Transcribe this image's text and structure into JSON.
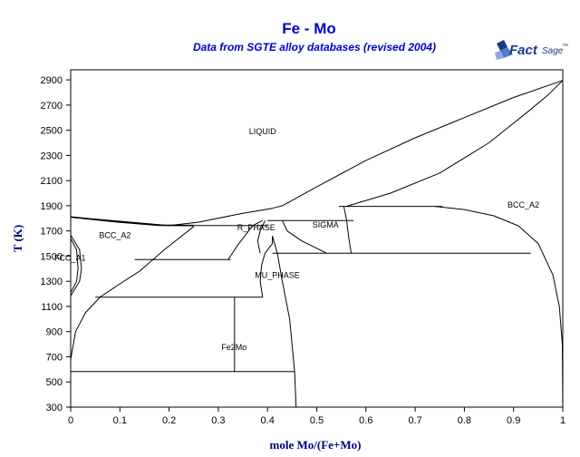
{
  "colors": {
    "title": "#0000cc",
    "axis_label": "#000080",
    "logo": "#1a3a8a",
    "line": "#000000"
  },
  "logo": {
    "icon": "factsage-logo-icon",
    "brand_fact": "Fact",
    "brand_sage": "Sage",
    "trademark": "™"
  },
  "chart_data": {
    "type": "phase-diagram",
    "title": "Fe - Mo",
    "subtitle": "Data from SGTE alloy databases (revised 2004)",
    "xlabel": "mole Mo/(Fe+Mo)",
    "ylabel": "T (K)",
    "xlim": [
      0,
      1
    ],
    "ylim": [
      300,
      2980
    ],
    "xticks": [
      0,
      0.1,
      0.2,
      0.3,
      0.4,
      0.5,
      0.6,
      0.7,
      0.8,
      0.9,
      1
    ],
    "yticks": [
      300,
      500,
      700,
      900,
      1100,
      1300,
      1500,
      1700,
      1900,
      2100,
      2300,
      2500,
      2700,
      2900
    ],
    "grid": false,
    "phase_labels": [
      {
        "text": "LIQUID",
        "x": 0.39,
        "y": 2470
      },
      {
        "text": "BCC_A2",
        "x": 0.92,
        "y": 1885
      },
      {
        "text": "BCC_A2",
        "x": 0.09,
        "y": 1645
      },
      {
        "text": "R_PHASE",
        "x": 0.377,
        "y": 1705
      },
      {
        "text": "SIGMA",
        "x": 0.518,
        "y": 1725
      },
      {
        "text": "FCC_A1",
        "x": 0.0,
        "y": 1465
      },
      {
        "text": "MU_PHASE",
        "x": 0.42,
        "y": 1325
      },
      {
        "text": "Fe2Mo",
        "x": 0.332,
        "y": 755
      }
    ],
    "boundaries": [
      {
        "name": "liquidus",
        "points": [
          [
            0.0,
            1811
          ],
          [
            0.2,
            1743
          ],
          [
            0.26,
            1770
          ],
          [
            0.35,
            1840
          ],
          [
            0.41,
            1880
          ],
          [
            0.43,
            1900
          ],
          [
            0.5,
            2050
          ],
          [
            0.6,
            2260
          ],
          [
            0.7,
            2440
          ],
          [
            0.8,
            2600
          ],
          [
            0.9,
            2760
          ],
          [
            1.0,
            2896
          ]
        ]
      },
      {
        "name": "solidus-fe",
        "points": [
          [
            0.0,
            1811
          ],
          [
            0.1,
            1770
          ],
          [
            0.18,
            1745
          ],
          [
            0.25,
            1743
          ]
        ]
      },
      {
        "name": "liquid-bcc-mo",
        "points": [
          [
            0.56,
            1895
          ],
          [
            0.65,
            2000
          ],
          [
            0.75,
            2160
          ],
          [
            0.85,
            2400
          ],
          [
            0.93,
            2650
          ],
          [
            0.97,
            2780
          ],
          [
            1.0,
            2896
          ]
        ]
      },
      {
        "name": "eutectic-fe-r",
        "points": [
          [
            0.25,
            1743
          ],
          [
            0.4,
            1743
          ]
        ]
      },
      {
        "name": "eutectic-sigma",
        "points": [
          [
            0.4,
            1783
          ],
          [
            0.575,
            1783
          ]
        ]
      },
      {
        "name": "peritectic-sigma",
        "points": [
          [
            0.545,
            1895
          ],
          [
            0.755,
            1895
          ]
        ]
      },
      {
        "name": "bcc-mo-solvus",
        "points": [
          [
            0.74,
            1895
          ],
          [
            0.8,
            1870
          ],
          [
            0.86,
            1820
          ],
          [
            0.91,
            1740
          ],
          [
            0.95,
            1600
          ],
          [
            0.98,
            1350
          ],
          [
            0.993,
            1100
          ],
          [
            0.999,
            800
          ],
          [
            1.0,
            300
          ]
        ]
      },
      {
        "name": "sigma-eutectoid",
        "points": [
          [
            0.41,
            1523
          ],
          [
            0.935,
            1523
          ]
        ]
      },
      {
        "name": "r-eutectoid",
        "points": [
          [
            0.13,
            1473
          ],
          [
            0.325,
            1473
          ]
        ]
      },
      {
        "name": "mu-peritectoid",
        "points": [
          [
            0.05,
            1173
          ],
          [
            0.39,
            1173
          ]
        ]
      },
      {
        "name": "fe2mo-decomposition",
        "points": [
          [
            0.0,
            583
          ],
          [
            0.455,
            583
          ]
        ]
      },
      {
        "name": "fe2mo-line",
        "points": [
          [
            0.333,
            583
          ],
          [
            0.333,
            1173
          ]
        ]
      },
      {
        "name": "bcc-fe-solvus",
        "points": [
          [
            0.0,
            680
          ],
          [
            0.01,
            900
          ],
          [
            0.03,
            1050
          ],
          [
            0.06,
            1175
          ],
          [
            0.1,
            1280
          ],
          [
            0.14,
            1380
          ],
          [
            0.19,
            1550
          ],
          [
            0.25,
            1735
          ]
        ]
      },
      {
        "name": "r-left",
        "points": [
          [
            0.32,
            1473
          ],
          [
            0.34,
            1590
          ],
          [
            0.37,
            1743
          ],
          [
            0.39,
            1783
          ]
        ]
      },
      {
        "name": "r-right",
        "points": [
          [
            0.395,
            1783
          ],
          [
            0.385,
            1700
          ],
          [
            0.38,
            1620
          ],
          [
            0.385,
            1523
          ]
        ]
      },
      {
        "name": "sigma-left",
        "points": [
          [
            0.43,
            1783
          ],
          [
            0.44,
            1700
          ],
          [
            0.47,
            1620
          ],
          [
            0.52,
            1523
          ]
        ]
      },
      {
        "name": "sigma-right",
        "points": [
          [
            0.555,
            1895
          ],
          [
            0.56,
            1800
          ],
          [
            0.565,
            1650
          ],
          [
            0.57,
            1523
          ]
        ]
      },
      {
        "name": "mu-left",
        "points": [
          [
            0.39,
            1173
          ],
          [
            0.385,
            1300
          ],
          [
            0.388,
            1430
          ],
          [
            0.395,
            1523
          ],
          [
            0.41,
            1600
          ],
          [
            0.41,
            1660
          ]
        ]
      },
      {
        "name": "mu-right",
        "points": [
          [
            0.41,
            1660
          ],
          [
            0.42,
            1520
          ],
          [
            0.43,
            1300
          ],
          [
            0.445,
            1000
          ],
          [
            0.455,
            583
          ],
          [
            0.458,
            300
          ]
        ]
      },
      {
        "name": "fcc-loop-outer",
        "points": [
          [
            0.0,
            1185
          ],
          [
            0.018,
            1300
          ],
          [
            0.022,
            1400
          ],
          [
            0.018,
            1550
          ],
          [
            0.0,
            1667
          ]
        ]
      },
      {
        "name": "fcc-loop-inner",
        "points": [
          [
            0.0,
            1210
          ],
          [
            0.012,
            1300
          ],
          [
            0.015,
            1400
          ],
          [
            0.012,
            1550
          ],
          [
            0.0,
            1640
          ]
        ]
      }
    ]
  }
}
